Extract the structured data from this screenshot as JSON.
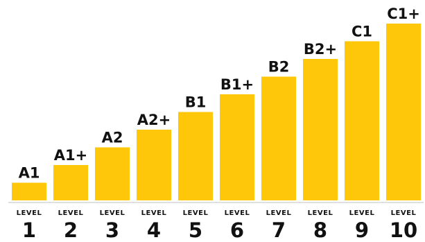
{
  "chart_data": {
    "type": "bar",
    "categories": [
      "1",
      "2",
      "3",
      "4",
      "5",
      "6",
      "7",
      "8",
      "9",
      "10"
    ],
    "category_prefix": "LEVEL",
    "bar_labels": [
      "A1",
      "A1+",
      "A2",
      "A2+",
      "B1",
      "B1+",
      "B2",
      "B2+",
      "C1",
      "C1+"
    ],
    "values": [
      1,
      2,
      3,
      4,
      5,
      6,
      7,
      8,
      9,
      10
    ],
    "title": "",
    "xlabel": "",
    "ylabel": "",
    "ylim": [
      0,
      10
    ],
    "grid": false,
    "legend": "none",
    "y_axis_visible": false,
    "bar_color": "#FFC709",
    "text_color": "#111111"
  }
}
